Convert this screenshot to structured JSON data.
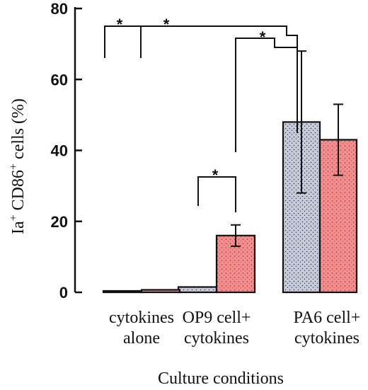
{
  "chart_data": {
    "type": "bar",
    "xlabel": "Culture conditions",
    "ylabel_parts": [
      "Ia",
      "+",
      " CD86",
      "+",
      " cells (%)"
    ],
    "ylim": [
      0,
      80
    ],
    "yticks": [
      0,
      20,
      40,
      60,
      80
    ],
    "categories": [
      [
        "cytokines",
        "alone"
      ],
      [
        "OP9 cell+",
        "cytokines"
      ],
      [
        "PA6 cell+",
        "cytokines"
      ]
    ],
    "series": [
      {
        "values": [
          0.3,
          1.5,
          48
        ],
        "error": [
          0,
          0,
          20
        ],
        "color": "#c9ccd8"
      },
      {
        "values": [
          0.7,
          16,
          43
        ],
        "error": [
          0,
          3,
          10
        ],
        "color": "#ef8f8f"
      }
    ],
    "significance": [
      {
        "label": "*"
      },
      {
        "label": "*"
      },
      {
        "label": "*"
      },
      {
        "label": "*"
      }
    ]
  }
}
